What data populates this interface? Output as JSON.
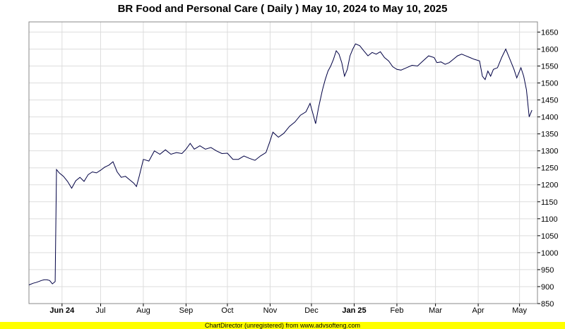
{
  "page": {
    "title": "BR Food and Personal Care ( Daily ) May 10, 2024 to May 10, 2025",
    "footer": "ChartDirector (unregistered) from www.advsofteng.com"
  },
  "chart_data": {
    "type": "line",
    "title": "BR Food and Personal Care ( Daily ) May 10, 2024 to May 10, 2025",
    "xlabel": "",
    "ylabel": "",
    "ylim": [
      850,
      1680
    ],
    "yticks": [
      850,
      900,
      950,
      1000,
      1050,
      1100,
      1150,
      1200,
      1250,
      1300,
      1350,
      1400,
      1450,
      1500,
      1550,
      1600,
      1650
    ],
    "y_axis_position": "right",
    "grid": true,
    "line_color": "#000044",
    "xlim": [
      "2024-05-10",
      "2025-05-14"
    ],
    "xticks": [
      {
        "date": "2024-06-03",
        "label": "Jun 24",
        "bold": true
      },
      {
        "date": "2024-07-01",
        "label": "Jul",
        "bold": false
      },
      {
        "date": "2024-08-01",
        "label": "Aug",
        "bold": false
      },
      {
        "date": "2024-09-01",
        "label": "Sep",
        "bold": false
      },
      {
        "date": "2024-10-01",
        "label": "Oct",
        "bold": false
      },
      {
        "date": "2024-11-01",
        "label": "Nov",
        "bold": false
      },
      {
        "date": "2024-12-01",
        "label": "Dec",
        "bold": false
      },
      {
        "date": "2025-01-01",
        "label": "Jan 25",
        "bold": true
      },
      {
        "date": "2025-02-01",
        "label": "Feb",
        "bold": false
      },
      {
        "date": "2025-03-01",
        "label": "Mar",
        "bold": false
      },
      {
        "date": "2025-04-01",
        "label": "Apr",
        "bold": false
      },
      {
        "date": "2025-05-01",
        "label": "May",
        "bold": false
      }
    ],
    "series": [
      {
        "points": [
          [
            "2024-05-10",
            905
          ],
          [
            "2024-05-13",
            910
          ],
          [
            "2024-05-15",
            912
          ],
          [
            "2024-05-17",
            915
          ],
          [
            "2024-05-19",
            918
          ],
          [
            "2024-05-21",
            920
          ],
          [
            "2024-05-23",
            920
          ],
          [
            "2024-05-25",
            918
          ],
          [
            "2024-05-27",
            908
          ],
          [
            "2024-05-29",
            915
          ],
          [
            "2024-05-30",
            1245
          ],
          [
            "2024-06-01",
            1235
          ],
          [
            "2024-06-04",
            1225
          ],
          [
            "2024-06-07",
            1210
          ],
          [
            "2024-06-10",
            1190
          ],
          [
            "2024-06-13",
            1212
          ],
          [
            "2024-06-16",
            1222
          ],
          [
            "2024-06-19",
            1210
          ],
          [
            "2024-06-22",
            1230
          ],
          [
            "2024-06-25",
            1238
          ],
          [
            "2024-06-28",
            1235
          ],
          [
            "2024-07-01",
            1243
          ],
          [
            "2024-07-04",
            1252
          ],
          [
            "2024-07-07",
            1258
          ],
          [
            "2024-07-10",
            1268
          ],
          [
            "2024-07-13",
            1238
          ],
          [
            "2024-07-16",
            1222
          ],
          [
            "2024-07-19",
            1225
          ],
          [
            "2024-07-22",
            1215
          ],
          [
            "2024-07-25",
            1205
          ],
          [
            "2024-07-27",
            1195
          ],
          [
            "2024-07-29",
            1225
          ],
          [
            "2024-08-01",
            1275
          ],
          [
            "2024-08-05",
            1270
          ],
          [
            "2024-08-09",
            1300
          ],
          [
            "2024-08-13",
            1290
          ],
          [
            "2024-08-17",
            1303
          ],
          [
            "2024-08-21",
            1290
          ],
          [
            "2024-08-25",
            1295
          ],
          [
            "2024-08-29",
            1292
          ],
          [
            "2024-09-01",
            1305
          ],
          [
            "2024-09-04",
            1322
          ],
          [
            "2024-09-07",
            1305
          ],
          [
            "2024-09-11",
            1315
          ],
          [
            "2024-09-15",
            1305
          ],
          [
            "2024-09-19",
            1310
          ],
          [
            "2024-09-23",
            1300
          ],
          [
            "2024-09-27",
            1292
          ],
          [
            "2024-10-01",
            1293
          ],
          [
            "2024-10-05",
            1275
          ],
          [
            "2024-10-09",
            1275
          ],
          [
            "2024-10-13",
            1285
          ],
          [
            "2024-10-17",
            1278
          ],
          [
            "2024-10-21",
            1272
          ],
          [
            "2024-10-25",
            1285
          ],
          [
            "2024-10-29",
            1295
          ],
          [
            "2024-11-01",
            1330
          ],
          [
            "2024-11-03",
            1355
          ],
          [
            "2024-11-07",
            1340
          ],
          [
            "2024-11-11",
            1352
          ],
          [
            "2024-11-15",
            1372
          ],
          [
            "2024-11-19",
            1385
          ],
          [
            "2024-11-23",
            1405
          ],
          [
            "2024-11-27",
            1415
          ],
          [
            "2024-11-30",
            1440
          ],
          [
            "2024-12-02",
            1410
          ],
          [
            "2024-12-04",
            1380
          ],
          [
            "2024-12-06",
            1425
          ],
          [
            "2024-12-09",
            1480
          ],
          [
            "2024-12-11",
            1510
          ],
          [
            "2024-12-13",
            1535
          ],
          [
            "2024-12-15",
            1550
          ],
          [
            "2024-12-17",
            1570
          ],
          [
            "2024-12-19",
            1595
          ],
          [
            "2024-12-21",
            1585
          ],
          [
            "2024-12-23",
            1560
          ],
          [
            "2024-12-25",
            1520
          ],
          [
            "2024-12-27",
            1540
          ],
          [
            "2024-12-29",
            1580
          ],
          [
            "2024-12-31",
            1600
          ],
          [
            "2025-01-02",
            1615
          ],
          [
            "2025-01-05",
            1610
          ],
          [
            "2025-01-08",
            1595
          ],
          [
            "2025-01-11",
            1580
          ],
          [
            "2025-01-14",
            1590
          ],
          [
            "2025-01-17",
            1585
          ],
          [
            "2025-01-20",
            1592
          ],
          [
            "2025-01-23",
            1575
          ],
          [
            "2025-01-26",
            1565
          ],
          [
            "2025-01-29",
            1548
          ],
          [
            "2025-02-01",
            1540
          ],
          [
            "2025-02-04",
            1538
          ],
          [
            "2025-02-08",
            1545
          ],
          [
            "2025-02-12",
            1552
          ],
          [
            "2025-02-16",
            1550
          ],
          [
            "2025-02-20",
            1565
          ],
          [
            "2025-02-24",
            1580
          ],
          [
            "2025-02-28",
            1575
          ],
          [
            "2025-03-02",
            1560
          ],
          [
            "2025-03-05",
            1562
          ],
          [
            "2025-03-08",
            1555
          ],
          [
            "2025-03-11",
            1560
          ],
          [
            "2025-03-14",
            1570
          ],
          [
            "2025-03-17",
            1580
          ],
          [
            "2025-03-20",
            1585
          ],
          [
            "2025-03-23",
            1580
          ],
          [
            "2025-03-26",
            1575
          ],
          [
            "2025-03-29",
            1570
          ],
          [
            "2025-04-02",
            1565
          ],
          [
            "2025-04-04",
            1520
          ],
          [
            "2025-04-06",
            1510
          ],
          [
            "2025-04-08",
            1535
          ],
          [
            "2025-04-10",
            1520
          ],
          [
            "2025-04-12",
            1540
          ],
          [
            "2025-04-15",
            1545
          ],
          [
            "2025-04-18",
            1575
          ],
          [
            "2025-04-21",
            1600
          ],
          [
            "2025-04-24",
            1570
          ],
          [
            "2025-04-27",
            1540
          ],
          [
            "2025-04-29",
            1515
          ],
          [
            "2025-05-02",
            1545
          ],
          [
            "2025-05-04",
            1520
          ],
          [
            "2025-05-06",
            1480
          ],
          [
            "2025-05-08",
            1400
          ],
          [
            "2025-05-10",
            1420
          ]
        ]
      }
    ]
  }
}
